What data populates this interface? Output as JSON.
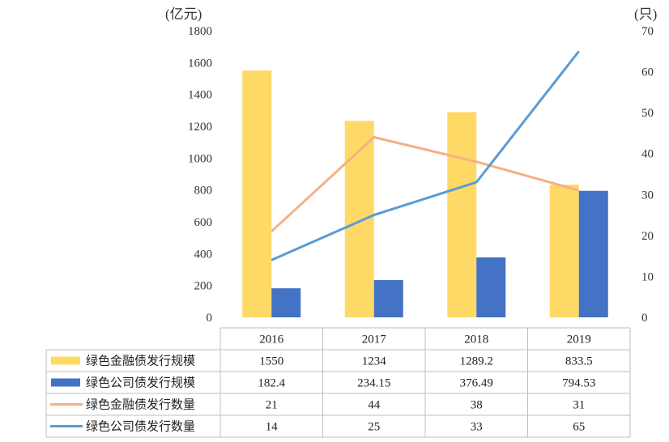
{
  "chart_data": {
    "type": "bar",
    "categories": [
      "2016",
      "2017",
      "2018",
      "2019"
    ],
    "left_axis": {
      "unit": "(亿元)",
      "ylim": [
        0,
        1800
      ],
      "ticks": [
        0,
        200,
        400,
        600,
        800,
        1000,
        1200,
        1400,
        1600,
        1800
      ]
    },
    "right_axis": {
      "unit": "(只)",
      "ylim": [
        0,
        70
      ],
      "ticks": [
        0,
        10,
        20,
        30,
        40,
        50,
        60,
        70
      ]
    },
    "series": [
      {
        "name": "绿色金融债发行规模",
        "kind": "bar",
        "axis": "left",
        "color": "#FFD966",
        "values": [
          1550,
          1234,
          1289.2,
          833.5
        ],
        "labels": [
          "1550",
          "1234",
          "1289.2",
          "833.5"
        ]
      },
      {
        "name": "绿色公司债发行规模",
        "kind": "bar",
        "axis": "left",
        "color": "#4472C4",
        "values": [
          182.4,
          234.15,
          376.49,
          794.53
        ],
        "labels": [
          "182.4",
          "234.15",
          "376.49",
          "794.53"
        ]
      },
      {
        "name": "绿色金融债发行数量",
        "kind": "line",
        "axis": "right",
        "color": "#F4B183",
        "values": [
          21,
          44,
          38,
          31
        ],
        "labels": [
          "21",
          "44",
          "38",
          "31"
        ]
      },
      {
        "name": "绿色公司债发行数量",
        "kind": "line",
        "axis": "right",
        "color": "#5B9BD5",
        "values": [
          14,
          25,
          33,
          65
        ],
        "labels": [
          "14",
          "25",
          "33",
          "65"
        ]
      }
    ],
    "grid": false,
    "legend": "data-table"
  }
}
